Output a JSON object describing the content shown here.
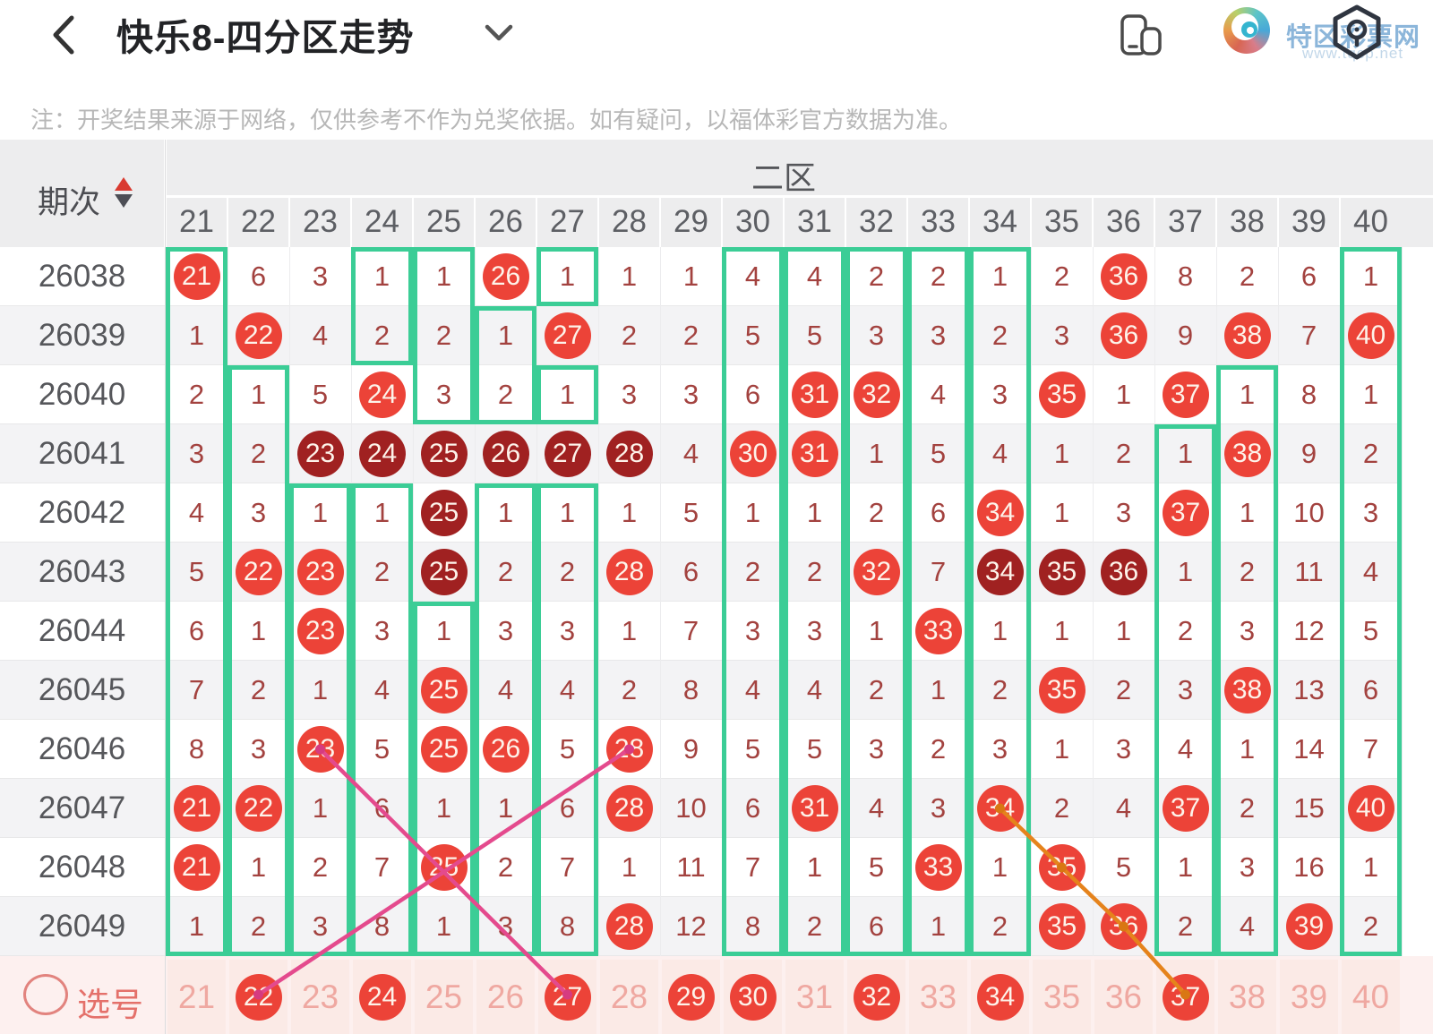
{
  "header": {
    "title": "快乐8-四分区走势",
    "brand_name": "特区彩票网",
    "brand_url": "www.tqcp.net"
  },
  "note": "注：开奖结果来源于网络，仅供参考不作为兑奖依据。如有疑问，以福体彩官方数据为准。",
  "table": {
    "period_label": "期次",
    "zone_label": "二区",
    "columns": [
      21,
      22,
      23,
      24,
      25,
      26,
      27,
      28,
      29,
      30,
      31,
      32,
      33,
      34,
      35,
      36,
      37,
      38,
      39,
      40
    ],
    "rows": [
      {
        "period": "26038",
        "cells": [
          "21b",
          "6",
          "3",
          "1",
          "1",
          "26b",
          "1",
          "1",
          "1",
          "4",
          "4",
          "2",
          "2",
          "1",
          "2",
          "36b",
          "8",
          "2",
          "6",
          "1"
        ]
      },
      {
        "period": "26039",
        "cells": [
          "1",
          "22b",
          "4",
          "2",
          "2",
          "1",
          "27b",
          "2",
          "2",
          "5",
          "5",
          "3",
          "3",
          "2",
          "3",
          "36b",
          "9",
          "38b",
          "7",
          "40b"
        ]
      },
      {
        "period": "26040",
        "cells": [
          "2",
          "1",
          "5",
          "24b",
          "3",
          "2",
          "1",
          "3",
          "3",
          "6",
          "31b",
          "32b",
          "4",
          "3",
          "35b",
          "1",
          "37b",
          "1",
          "8",
          "1"
        ]
      },
      {
        "period": "26041",
        "cells": [
          "3",
          "2",
          "23d",
          "24d",
          "25d",
          "26d",
          "27d",
          "28d",
          "4",
          "30b",
          "31b",
          "1",
          "5",
          "4",
          "1",
          "2",
          "1",
          "38b",
          "9",
          "2"
        ]
      },
      {
        "period": "26042",
        "cells": [
          "4",
          "3",
          "1",
          "1",
          "25d",
          "1",
          "1",
          "1",
          "5",
          "1",
          "1",
          "2",
          "6",
          "34b",
          "1",
          "3",
          "37b",
          "1",
          "10",
          "3"
        ]
      },
      {
        "period": "26043",
        "cells": [
          "5",
          "22b",
          "23b",
          "2",
          "25d",
          "2",
          "2",
          "28b",
          "6",
          "2",
          "2",
          "32b",
          "7",
          "34d",
          "35d",
          "36d",
          "1",
          "2",
          "11",
          "4"
        ]
      },
      {
        "period": "26044",
        "cells": [
          "6",
          "1",
          "23b",
          "3",
          "1",
          "3",
          "3",
          "1",
          "7",
          "3",
          "3",
          "1",
          "33b",
          "1",
          "1",
          "1",
          "2",
          "3",
          "12",
          "5"
        ]
      },
      {
        "period": "26045",
        "cells": [
          "7",
          "2",
          "1",
          "4",
          "25b",
          "4",
          "4",
          "2",
          "8",
          "4",
          "4",
          "2",
          "1",
          "2",
          "35b",
          "2",
          "3",
          "38b",
          "13",
          "6"
        ]
      },
      {
        "period": "26046",
        "cells": [
          "8",
          "3",
          "23b",
          "5",
          "25b",
          "26b",
          "5",
          "28b",
          "9",
          "5",
          "5",
          "3",
          "2",
          "3",
          "1",
          "3",
          "4",
          "1",
          "14",
          "7"
        ]
      },
      {
        "period": "26047",
        "cells": [
          "21b",
          "22b",
          "1",
          "6",
          "1",
          "1",
          "6",
          "28b",
          "10",
          "6",
          "31b",
          "4",
          "3",
          "34b",
          "2",
          "4",
          "37b",
          "2",
          "15",
          "40b"
        ]
      },
      {
        "period": "26048",
        "cells": [
          "21b",
          "1",
          "2",
          "7",
          "25b",
          "2",
          "7",
          "1",
          "11",
          "7",
          "1",
          "5",
          "33b",
          "1",
          "35b",
          "5",
          "1",
          "3",
          "16",
          "1"
        ]
      },
      {
        "period": "26049",
        "cells": [
          "1",
          "2",
          "3",
          "8",
          "1",
          "3",
          "8",
          "28b",
          "12",
          "8",
          "2",
          "6",
          "1",
          "2",
          "35b",
          "36b",
          "2",
          "4",
          "39b",
          "2"
        ]
      }
    ],
    "green_boxes": [
      [
        21,
        0,
        11
      ],
      [
        22,
        2,
        11
      ],
      [
        23,
        4,
        11
      ],
      [
        24,
        0,
        1
      ],
      [
        24,
        4,
        11
      ],
      [
        25,
        0,
        2
      ],
      [
        25,
        6,
        11
      ],
      [
        26,
        1,
        2
      ],
      [
        26,
        4,
        11
      ],
      [
        27,
        0,
        0
      ],
      [
        27,
        2,
        2
      ],
      [
        27,
        4,
        11
      ],
      [
        30,
        0,
        11
      ],
      [
        31,
        0,
        11
      ],
      [
        32,
        0,
        11
      ],
      [
        33,
        0,
        11
      ],
      [
        34,
        0,
        11
      ],
      [
        37,
        3,
        11
      ],
      [
        38,
        2,
        11
      ],
      [
        40,
        0,
        11
      ]
    ],
    "selection": {
      "label": "选号",
      "picked": [
        22,
        24,
        27,
        29,
        30,
        32,
        34,
        37
      ]
    },
    "trend_lines": [
      {
        "color": "#e44a8d",
        "dot": "#d63b80",
        "points": [
          [
            23,
            8
          ],
          [
            27,
            12
          ]
        ]
      },
      {
        "color": "#e44a8d",
        "dot": "#d63b80",
        "points": [
          [
            28,
            8
          ],
          [
            22,
            12
          ]
        ]
      },
      {
        "color": "#e5831c",
        "dot": "#d97713",
        "points": [
          [
            34,
            9
          ],
          [
            35,
            10
          ],
          [
            36,
            11
          ],
          [
            37,
            12
          ]
        ]
      }
    ]
  },
  "colors": {
    "ball_bright": "#ec4338",
    "ball_dark": "#a02121",
    "green": "#3bcd96",
    "miss_text": "#a3423f",
    "row_alt": "#f3f3f5",
    "row_plain": "#ffffff"
  }
}
